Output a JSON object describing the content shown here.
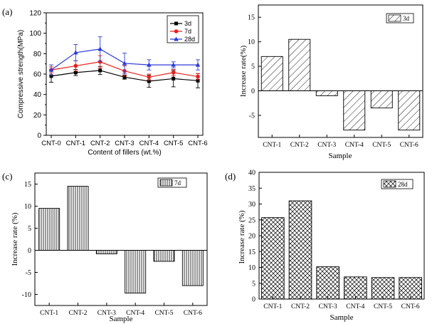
{
  "chart_data": [
    {
      "id": "a",
      "panel_label": "(a)",
      "type": "line",
      "categories": [
        "CNT-0",
        "CNT-1",
        "CNT-2",
        "CNT-3",
        "CNT-4",
        "CNT-5",
        "CNT-6"
      ],
      "series": [
        {
          "name": "3d",
          "color": "#000000",
          "marker": "square",
          "values": [
            58,
            61.5,
            63.5,
            57,
            53,
            55.5,
            53.5
          ],
          "errors": [
            6,
            3,
            4,
            2,
            6,
            8,
            7
          ]
        },
        {
          "name": "7d",
          "color": "#e8201c",
          "marker": "circle",
          "values": [
            64,
            68,
            72,
            63,
            57,
            61.5,
            57.5
          ],
          "errors": [
            3,
            5,
            6,
            5,
            3,
            3,
            3
          ]
        },
        {
          "name": "28d",
          "color": "#2b3bd6",
          "marker": "triangle",
          "values": [
            64,
            81,
            84.5,
            70.5,
            69,
            69,
            69
          ],
          "errors": [
            5,
            8,
            12,
            10,
            5,
            3,
            5
          ]
        }
      ],
      "xlabel": "Content of fillers (wt.%)",
      "ylabel": "Compressive strength(MPa)",
      "ylim": [
        0,
        120
      ],
      "yticks": [
        "0",
        "20",
        "40",
        "60",
        "80",
        "100",
        "120"
      ]
    },
    {
      "id": "b",
      "panel_label": "",
      "type": "bar",
      "legend": "3d",
      "pattern": "diagonal",
      "categories": [
        "CNT-1",
        "CNT-2",
        "CNT-3",
        "CNT-4",
        "CNT-5",
        "CNT-6"
      ],
      "values": [
        7,
        10.5,
        -1,
        -8,
        -3.5,
        -8
      ],
      "xlabel": "Sample",
      "ylabel": "Increase rate(%)",
      "ylim": [
        -9.5,
        17.5
      ],
      "yticks": [
        "15",
        "10",
        "5",
        "0",
        "-5"
      ]
    },
    {
      "id": "c",
      "panel_label": "(c)",
      "type": "bar",
      "legend": "7d",
      "pattern": "vertical",
      "categories": [
        "CNT-1",
        "CNT-2",
        "CNT-3",
        "CNT-4",
        "CNT-5",
        "CNT-6"
      ],
      "values": [
        9.5,
        14.5,
        -0.8,
        -9.7,
        -2.5,
        -8
      ],
      "xlabel": "Sample",
      "ylabel": "Increase rate (%)",
      "ylim": [
        -12.5,
        17.5
      ],
      "yticks": [
        "15",
        "10",
        "5",
        "0",
        "-5",
        "-10"
      ]
    },
    {
      "id": "d",
      "panel_label": "(d)",
      "type": "bar",
      "legend": "28d",
      "pattern": "crosshatch",
      "categories": [
        "CNT-1",
        "CNT-2",
        "CNT-3",
        "CNT-4",
        "CNT-5",
        "CNT-6"
      ],
      "values": [
        25.7,
        31,
        10.2,
        7,
        6.8,
        6.8
      ],
      "xlabel": "Sample",
      "ylabel": "Increase rate (%)",
      "ylim": [
        0,
        40
      ],
      "yticks": [
        "0",
        "5",
        "10",
        "15",
        "20",
        "25",
        "30",
        "35",
        "40"
      ]
    }
  ]
}
